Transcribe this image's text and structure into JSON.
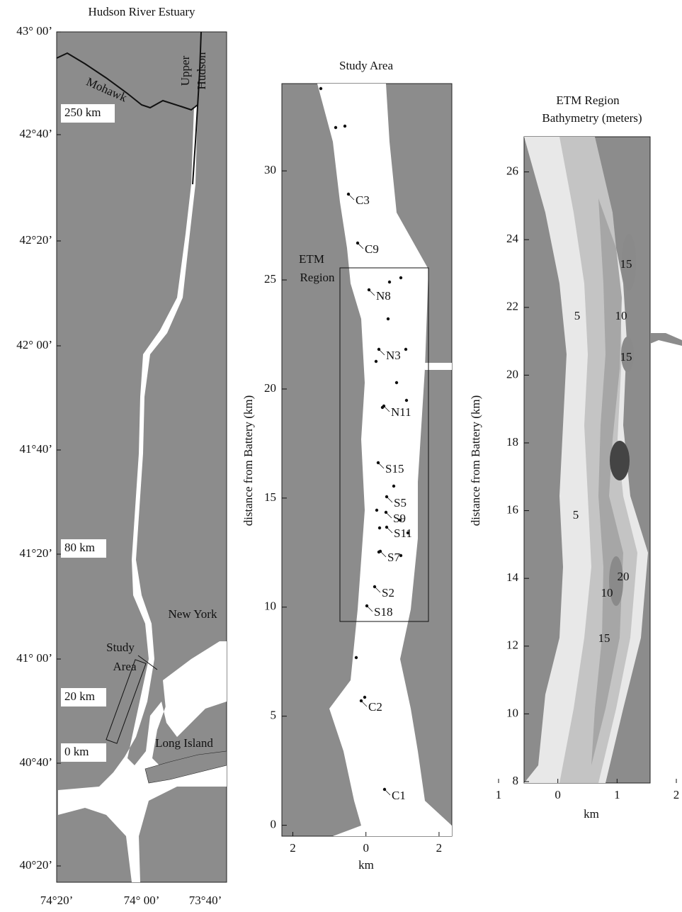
{
  "overview": {
    "title": "Hudson River Estuary",
    "lat_labels": [
      "43° 00’",
      "42°40’",
      "42°20’",
      "42° 00’",
      "41°40’",
      "41°20’",
      "41° 00’",
      "40°40’",
      "40°20’"
    ],
    "lon_labels": [
      "74°20’",
      "74° 00’",
      "73°40’"
    ],
    "mohawk": "Mohawk",
    "upper_hudson": [
      "Upper",
      "Hudson"
    ],
    "km_markers": [
      "250 km",
      "80 km",
      "20 km",
      "0 km"
    ],
    "new_york": "New York",
    "study_area": [
      "Study",
      "Area"
    ],
    "long_island": "Long Island"
  },
  "study_area": {
    "title": "Study Area",
    "y_label": "distance from Battery (km)",
    "x_label": "km",
    "xlim": [
      -2.3,
      2.35
    ],
    "ylim": [
      -0.5,
      34
    ],
    "xticks": [
      {
        "value": -2,
        "label": "2"
      },
      0,
      2
    ],
    "yticks": [
      0,
      5,
      10,
      15,
      20,
      25,
      30
    ],
    "etm_label": [
      "ETM",
      "Region"
    ],
    "stations": [
      "C3",
      "C9",
      "N8",
      "N3",
      "N11",
      "S15",
      "S5",
      "S9",
      "S11",
      "S7",
      "S2",
      "S18",
      "C2",
      "C1"
    ]
  },
  "etm_region": {
    "title": [
      "ETM Region",
      "Bathymetry (meters)"
    ],
    "y_label": "distance from Battery (km)",
    "x_label": "km",
    "xlim": [
      -1,
      2
    ],
    "ylim": [
      8,
      27
    ],
    "xticks": [
      {
        "value": -1,
        "label": "1"
      },
      0,
      1,
      2
    ],
    "yticks": [
      8,
      10,
      12,
      14,
      16,
      18,
      20,
      22,
      24,
      26
    ],
    "contour_labels": [
      15,
      5,
      10,
      15,
      5,
      20,
      10,
      15
    ]
  }
}
